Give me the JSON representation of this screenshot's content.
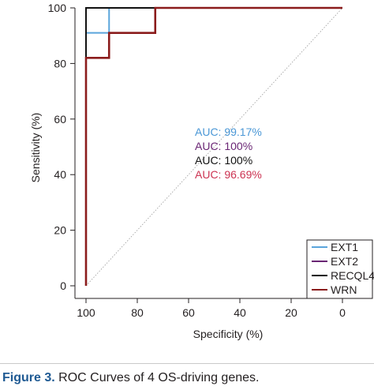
{
  "chart_data": {
    "type": "line",
    "xlabel": "Specificity (%)",
    "ylabel": "Sensitivity (%)",
    "xlim": [
      100,
      0
    ],
    "ylim": [
      0,
      100
    ],
    "x_ticks": [
      "100",
      "80",
      "60",
      "40",
      "20",
      "0"
    ],
    "y_ticks": [
      "0",
      "20",
      "40",
      "60",
      "80",
      "100"
    ],
    "reference_line": "diagonal, dotted grey",
    "legend_position": "bottom-right",
    "series": [
      {
        "name": "EXT1",
        "color": "#5aa5dc",
        "points": [
          [
            100,
            0
          ],
          [
            100,
            91
          ],
          [
            91,
            91
          ],
          [
            91,
            100
          ],
          [
            0,
            100
          ]
        ],
        "auc_label": "AUC: 99.17%"
      },
      {
        "name": "EXT2",
        "color": "#6a2574",
        "points": [
          [
            100,
            0
          ],
          [
            100,
            100
          ],
          [
            0,
            100
          ]
        ],
        "auc_label": "AUC: 100%"
      },
      {
        "name": "RECQL4",
        "color": "#111111",
        "points": [
          [
            100,
            0
          ],
          [
            100,
            100
          ],
          [
            0,
            100
          ]
        ],
        "auc_label": "AUC: 100%"
      },
      {
        "name": "WRN",
        "color": "#8b1c1c",
        "points": [
          [
            100,
            0
          ],
          [
            100,
            82
          ],
          [
            91,
            82
          ],
          [
            91,
            91
          ],
          [
            73,
            91
          ],
          [
            73,
            100
          ],
          [
            0,
            100
          ]
        ],
        "auc_label": "AUC: 96.69%"
      }
    ]
  },
  "auc_colors": [
    "#4a97d6",
    "#6a2574",
    "#111111",
    "#cc3352"
  ],
  "caption": {
    "label": "Figure 3.",
    "text": " ROC Curves of 4 OS-driving genes."
  }
}
